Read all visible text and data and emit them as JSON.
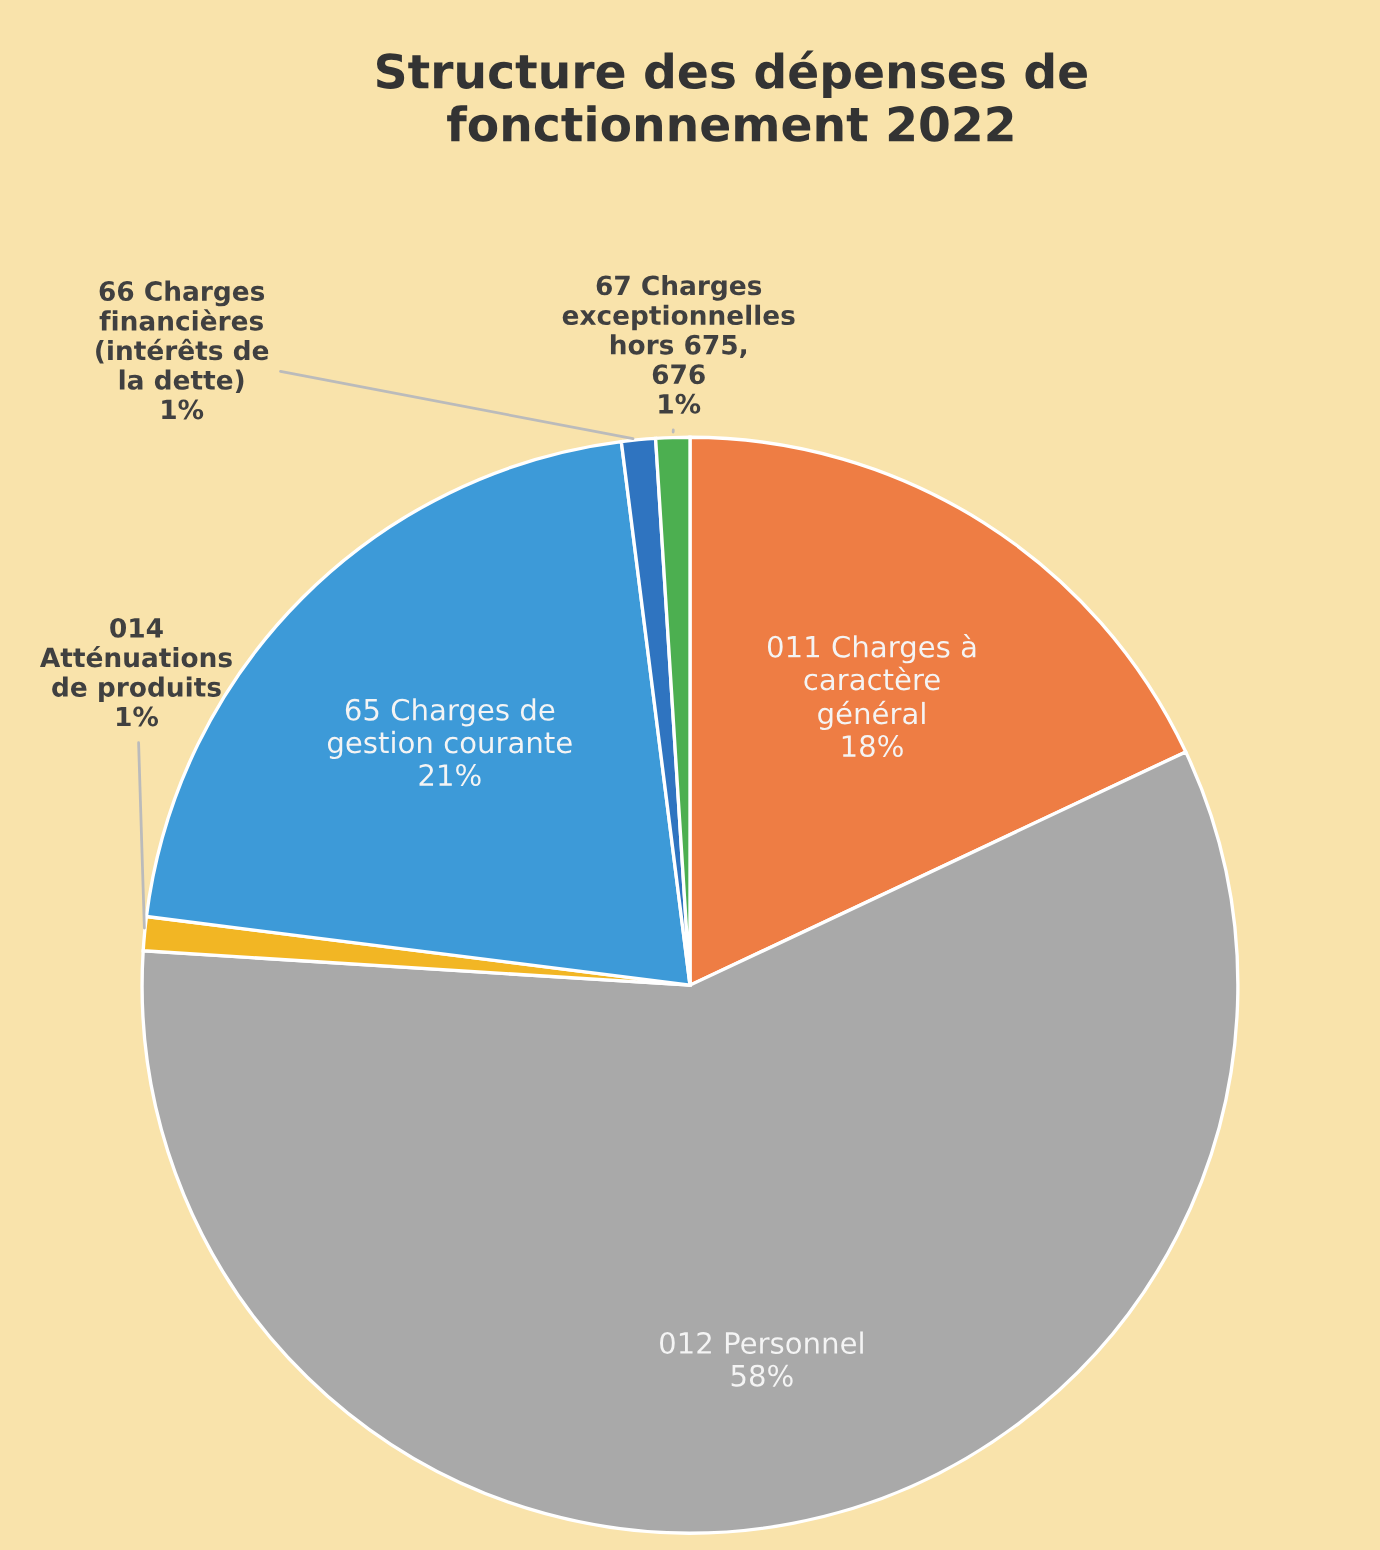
{
  "chart_data": {
    "type": "pie",
    "title": "Structure des dépenses de fonctionnement 2022",
    "categories": [
      "011 Charges à caractère général",
      "012 Personnel",
      "014 Atténuations de produits",
      "65 Charges de gestion courante",
      "66 Charges financières (intérêts de la dette)",
      "67 Charges exceptionnelles hors 675, 676"
    ],
    "values": [
      18,
      58,
      1,
      21,
      1,
      1
    ],
    "value_labels": [
      "18%",
      "58%",
      "1%",
      "21%",
      "1%",
      "1%"
    ],
    "colors": [
      "#ee7d44",
      "#a9a9a9",
      "#f2b624",
      "#3d9ad8",
      "#2f74c0",
      "#4caf50"
    ],
    "legend": false
  }
}
